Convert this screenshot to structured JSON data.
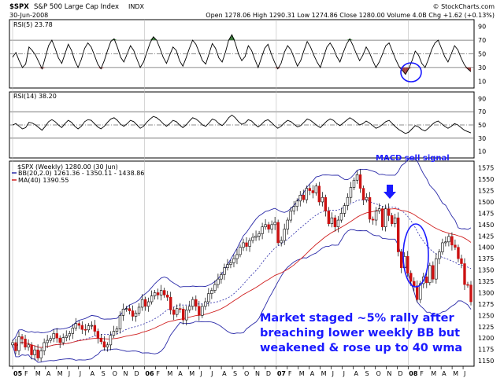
{
  "header": {
    "symbol": "$SPX",
    "name": "S&P 500 Large Cap Index",
    "exchange": "INDX",
    "date": "30-Jun-2008",
    "ohlc": "Open 1278.06  High 1290.31  Low 1274.86  Close 1280.00  Volume 4.0B  Chg +1.62 (+0.13%)",
    "copyright": "© StockCharts.com"
  },
  "chart_data": [
    {
      "type": "line",
      "panel": "rsi5",
      "legend": "RSI(5) 23.78",
      "ylim": [
        0,
        100
      ],
      "yticks": [
        "90",
        "70",
        "50",
        "30",
        "10"
      ],
      "reference_lines": [
        70,
        50,
        30
      ],
      "series": [
        {
          "name": "RSI(5)",
          "values": [
            45,
            52,
            40,
            30,
            35,
            60,
            55,
            48,
            38,
            28,
            45,
            62,
            70,
            58,
            44,
            36,
            50,
            64,
            55,
            40,
            30,
            42,
            58,
            66,
            60,
            48,
            35,
            28,
            40,
            55,
            68,
            72,
            60,
            45,
            38,
            50,
            62,
            55,
            42,
            30,
            38,
            52,
            66,
            75,
            70,
            58,
            45,
            36,
            48,
            60,
            55,
            40,
            32,
            44,
            58,
            70,
            64,
            52,
            40,
            35,
            50,
            65,
            58,
            44,
            38,
            52,
            70,
            78,
            66,
            50,
            40,
            46,
            62,
            55,
            42,
            30,
            44,
            58,
            64,
            50,
            38,
            28,
            36,
            52,
            62,
            56,
            44,
            32,
            40,
            55,
            68,
            60,
            48,
            38,
            30,
            45,
            60,
            66,
            58,
            46,
            38,
            52,
            64,
            72,
            62,
            50,
            40,
            48,
            60,
            52,
            40,
            30,
            38,
            50,
            62,
            66,
            54,
            42,
            32,
            26,
            20,
            28,
            40,
            54,
            48,
            36,
            30,
            42,
            56,
            66,
            70,
            58,
            46,
            38,
            50,
            62,
            56,
            44,
            34,
            28,
            24
          ]
        }
      ]
    },
    {
      "type": "line",
      "panel": "rsi14",
      "legend": "RSI(14) 38.20",
      "ylim": [
        0,
        100
      ],
      "yticks": [
        "90",
        "70",
        "50",
        "30",
        "10"
      ],
      "reference_lines": [
        70,
        50,
        30
      ],
      "series": [
        {
          "name": "RSI(14)",
          "values": [
            50,
            52,
            48,
            44,
            46,
            54,
            53,
            50,
            46,
            42,
            48,
            55,
            58,
            55,
            50,
            46,
            52,
            57,
            54,
            48,
            44,
            48,
            55,
            58,
            57,
            52,
            47,
            44,
            48,
            54,
            59,
            61,
            57,
            51,
            48,
            52,
            57,
            55,
            50,
            45,
            48,
            54,
            59,
            63,
            61,
            57,
            52,
            48,
            52,
            57,
            55,
            50,
            46,
            50,
            56,
            61,
            59,
            55,
            50,
            48,
            53,
            59,
            57,
            52,
            49,
            54,
            61,
            65,
            61,
            55,
            51,
            53,
            58,
            56,
            51,
            47,
            51,
            56,
            58,
            54,
            49,
            45,
            48,
            53,
            57,
            55,
            51,
            47,
            49,
            54,
            59,
            57,
            53,
            49,
            46,
            51,
            56,
            59,
            57,
            52,
            49,
            53,
            57,
            61,
            58,
            54,
            50,
            52,
            56,
            53,
            49,
            45,
            47,
            51,
            55,
            57,
            52,
            47,
            43,
            40,
            37,
            39,
            44,
            49,
            47,
            43,
            41,
            45,
            50,
            54,
            56,
            52,
            48,
            45,
            48,
            52,
            50,
            46,
            42,
            40,
            38
          ]
        }
      ]
    },
    {
      "type": "line",
      "panel": "price",
      "legend_symbol": "$SPX (Weekly) 1280.00 (30 Jun)",
      "legend_bb": "BB(20,2.0) 1261.36 - 1350.11 - 1438.86",
      "legend_ma": "MA(40) 1390.55",
      "ylim": [
        1138,
        1590
      ],
      "yticks": [
        "1575",
        "1550",
        "1525",
        "1500",
        "1475",
        "1450",
        "1425",
        "1400",
        "1375",
        "1350",
        "1325",
        "1300",
        "1275",
        "1250",
        "1225",
        "1200",
        "1175",
        "1150"
      ],
      "x_labels": [
        "05",
        "F",
        "M",
        "A",
        "M",
        "J",
        "J",
        "A",
        "S",
        "O",
        "N",
        "D",
        "06",
        "F",
        "M",
        "A",
        "M",
        "J",
        "J",
        "A",
        "S",
        "O",
        "N",
        "D",
        "07",
        "F",
        "M",
        "A",
        "M",
        "J",
        "J",
        "A",
        "S",
        "O",
        "N",
        "D",
        "08",
        "F",
        "M",
        "A",
        "M",
        "J"
      ],
      "year_labels": [
        "05",
        "06",
        "07",
        "08"
      ],
      "close": [
        1190,
        1172,
        1203,
        1198,
        1180,
        1185,
        1163,
        1174,
        1156,
        1172,
        1190,
        1195,
        1199,
        1210,
        1200,
        1190,
        1201,
        1205,
        1210,
        1222,
        1232,
        1228,
        1219,
        1218,
        1227,
        1228,
        1215,
        1200,
        1192,
        1180,
        1185,
        1206,
        1215,
        1220,
        1250,
        1264,
        1265,
        1260,
        1248,
        1255,
        1268,
        1285,
        1270,
        1280,
        1293,
        1300,
        1295,
        1305,
        1295,
        1290,
        1262,
        1252,
        1265,
        1264,
        1240,
        1262,
        1270,
        1285,
        1270,
        1250,
        1270,
        1280,
        1298,
        1305,
        1318,
        1330,
        1340,
        1355,
        1362,
        1366,
        1375,
        1384,
        1400,
        1410,
        1402,
        1415,
        1422,
        1425,
        1430,
        1445,
        1450,
        1440,
        1450,
        1455,
        1410,
        1415,
        1440,
        1460,
        1480,
        1490,
        1502,
        1515,
        1505,
        1530,
        1525,
        1520,
        1535,
        1500,
        1510,
        1480,
        1452,
        1465,
        1445,
        1460,
        1475,
        1492,
        1510,
        1532,
        1548,
        1560,
        1530,
        1505,
        1510,
        1462,
        1460,
        1480,
        1485,
        1445,
        1485,
        1470,
        1452,
        1465,
        1390,
        1355,
        1380,
        1343,
        1325,
        1315,
        1285,
        1320,
        1335,
        1322,
        1360,
        1330,
        1375,
        1390,
        1410,
        1412,
        1424,
        1405,
        1400,
        1375,
        1364,
        1318,
        1317,
        1280
      ],
      "annotations": [
        "MACD sell signal",
        "Market staged ~5% rally after",
        "breaching lower weekly BB but",
        "weakened & rose up to 40 wma"
      ]
    }
  ]
}
